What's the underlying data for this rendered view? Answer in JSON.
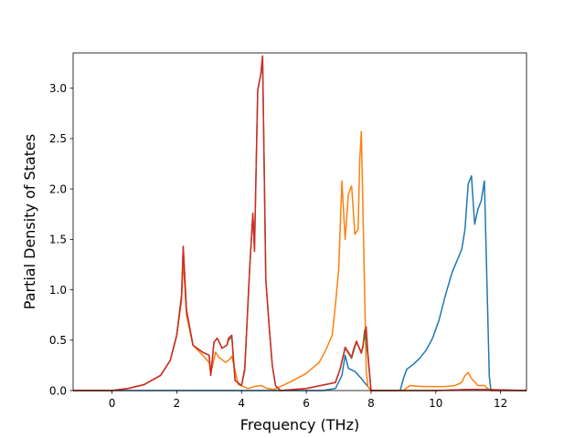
{
  "chart_data": {
    "type": "line",
    "title": "",
    "xlabel": "Frequency (THz)",
    "ylabel": "Partial Density of States",
    "xlim": [
      -1.2,
      12.8
    ],
    "ylim": [
      0,
      3.35
    ],
    "xticks": [
      0,
      2,
      4,
      6,
      8,
      10,
      12
    ],
    "yticks": [
      0.0,
      0.5,
      1.0,
      1.5,
      2.0,
      2.5,
      3.0
    ],
    "xtick_labels": [
      "0",
      "2",
      "4",
      "6",
      "8",
      "10",
      "12"
    ],
    "ytick_labels": [
      "0.0",
      "0.5",
      "1.0",
      "1.5",
      "2.0",
      "2.5",
      "3.0"
    ],
    "grid": false,
    "legend": "none",
    "series": [
      {
        "color": "#1f77b4",
        "x": [
          -1.2,
          6.5,
          6.9,
          7.1,
          7.2,
          7.3,
          7.5,
          7.7,
          7.9,
          8.0,
          8.9,
          9.0,
          9.1,
          9.3,
          9.5,
          9.7,
          9.9,
          10.1,
          10.3,
          10.5,
          10.8,
          10.9,
          11.0,
          11.1,
          11.2,
          11.3,
          11.4,
          11.5,
          11.6,
          11.65,
          11.7,
          12.8
        ],
        "y": [
          0,
          0,
          0.02,
          0.15,
          0.35,
          0.22,
          0.19,
          0.12,
          0.04,
          0,
          0,
          0.12,
          0.21,
          0.26,
          0.32,
          0.4,
          0.52,
          0.7,
          0.95,
          1.17,
          1.4,
          1.6,
          2.05,
          2.13,
          1.65,
          1.8,
          1.88,
          2.08,
          0.8,
          0.15,
          0,
          0
        ]
      },
      {
        "color": "#ff7f0e",
        "x": [
          -1.2,
          0,
          0.5,
          1.0,
          1.5,
          1.8,
          2.0,
          2.15,
          2.2,
          2.3,
          2.5,
          2.8,
          3.0,
          3.05,
          3.2,
          3.3,
          3.5,
          3.6,
          3.7,
          3.9,
          4.2,
          4.4,
          4.6,
          4.8,
          5.0,
          5.2,
          5.6,
          6.0,
          6.4,
          6.6,
          6.8,
          6.9,
          7.0,
          7.1,
          7.2,
          7.3,
          7.4,
          7.5,
          7.6,
          7.65,
          7.7,
          7.8,
          7.85,
          7.9,
          8.0,
          8.1,
          9.0,
          9.2,
          9.6,
          10.0,
          10.3,
          10.6,
          10.8,
          10.9,
          11.0,
          11.1,
          11.3,
          11.5,
          11.6,
          11.7,
          12.8
        ],
        "y": [
          0,
          0,
          0.02,
          0.06,
          0.15,
          0.3,
          0.55,
          0.9,
          1.3,
          0.75,
          0.45,
          0.35,
          0.28,
          0.17,
          0.38,
          0.33,
          0.28,
          0.3,
          0.34,
          0.06,
          0.02,
          0.04,
          0.05,
          0.02,
          0.01,
          0.04,
          0.1,
          0.17,
          0.28,
          0.4,
          0.55,
          0.85,
          1.2,
          2.08,
          1.5,
          1.95,
          2.03,
          1.55,
          1.6,
          2.28,
          2.57,
          1.0,
          0.2,
          0.04,
          0,
          0,
          0,
          0.05,
          0.04,
          0.04,
          0.04,
          0.05,
          0.08,
          0.15,
          0.18,
          0.12,
          0.05,
          0.05,
          0.02,
          0,
          0
        ]
      },
      {
        "color": "#2ca02c",
        "x": [
          -1.2,
          0,
          0.5,
          1.0,
          1.5,
          1.8,
          2.0,
          2.15,
          2.2,
          2.3,
          2.5,
          2.8,
          3.0,
          3.05,
          3.15,
          3.25,
          3.4,
          3.55,
          3.6,
          3.7,
          3.8,
          4.0,
          4.1,
          4.25,
          4.35,
          4.4,
          4.5,
          4.6,
          4.65,
          4.75,
          4.85,
          4.95,
          5.05,
          5.2,
          6.0,
          6.6,
          6.9,
          7.05,
          7.2,
          7.4,
          7.45,
          7.55,
          7.7,
          7.75,
          7.8,
          7.9,
          8.0,
          9.0,
          10.0,
          11.0,
          11.5,
          12.8
        ],
        "y": [
          0,
          0,
          0.02,
          0.06,
          0.15,
          0.3,
          0.55,
          0.95,
          1.43,
          0.8,
          0.45,
          0.38,
          0.35,
          0.15,
          0.48,
          0.52,
          0.42,
          0.45,
          0.5,
          0.53,
          0.1,
          0.05,
          0.2,
          1.2,
          1.75,
          1.4,
          2.98,
          3.15,
          3.32,
          1.1,
          0.65,
          0.25,
          0.05,
          0,
          0.02,
          0.06,
          0.08,
          0.22,
          0.42,
          0.32,
          0.38,
          0.48,
          0.38,
          0.43,
          0.6,
          0.35,
          0,
          0,
          0,
          0.01,
          0.01,
          0
        ]
      },
      {
        "color": "#d62728",
        "x": [
          -1.2,
          0,
          0.5,
          1.0,
          1.5,
          1.8,
          2.0,
          2.15,
          2.2,
          2.3,
          2.5,
          2.8,
          3.0,
          3.05,
          3.15,
          3.25,
          3.4,
          3.55,
          3.6,
          3.7,
          3.8,
          4.0,
          4.1,
          4.25,
          4.35,
          4.4,
          4.5,
          4.6,
          4.65,
          4.75,
          4.85,
          4.95,
          5.05,
          5.2,
          6.0,
          6.6,
          6.9,
          7.05,
          7.2,
          7.4,
          7.45,
          7.55,
          7.7,
          7.75,
          7.85,
          7.9,
          8.0,
          9.0,
          10.0,
          11.0,
          11.5,
          12.8
        ],
        "y": [
          0,
          0,
          0.02,
          0.06,
          0.15,
          0.3,
          0.55,
          0.95,
          1.43,
          0.8,
          0.45,
          0.38,
          0.35,
          0.15,
          0.48,
          0.52,
          0.42,
          0.45,
          0.52,
          0.55,
          0.1,
          0.05,
          0.22,
          1.2,
          1.76,
          1.38,
          2.98,
          3.15,
          3.32,
          1.1,
          0.65,
          0.25,
          0.05,
          0,
          0.02,
          0.06,
          0.08,
          0.22,
          0.43,
          0.33,
          0.4,
          0.49,
          0.37,
          0.45,
          0.63,
          0.38,
          0,
          0,
          0,
          0.01,
          0.01,
          0
        ]
      }
    ]
  }
}
